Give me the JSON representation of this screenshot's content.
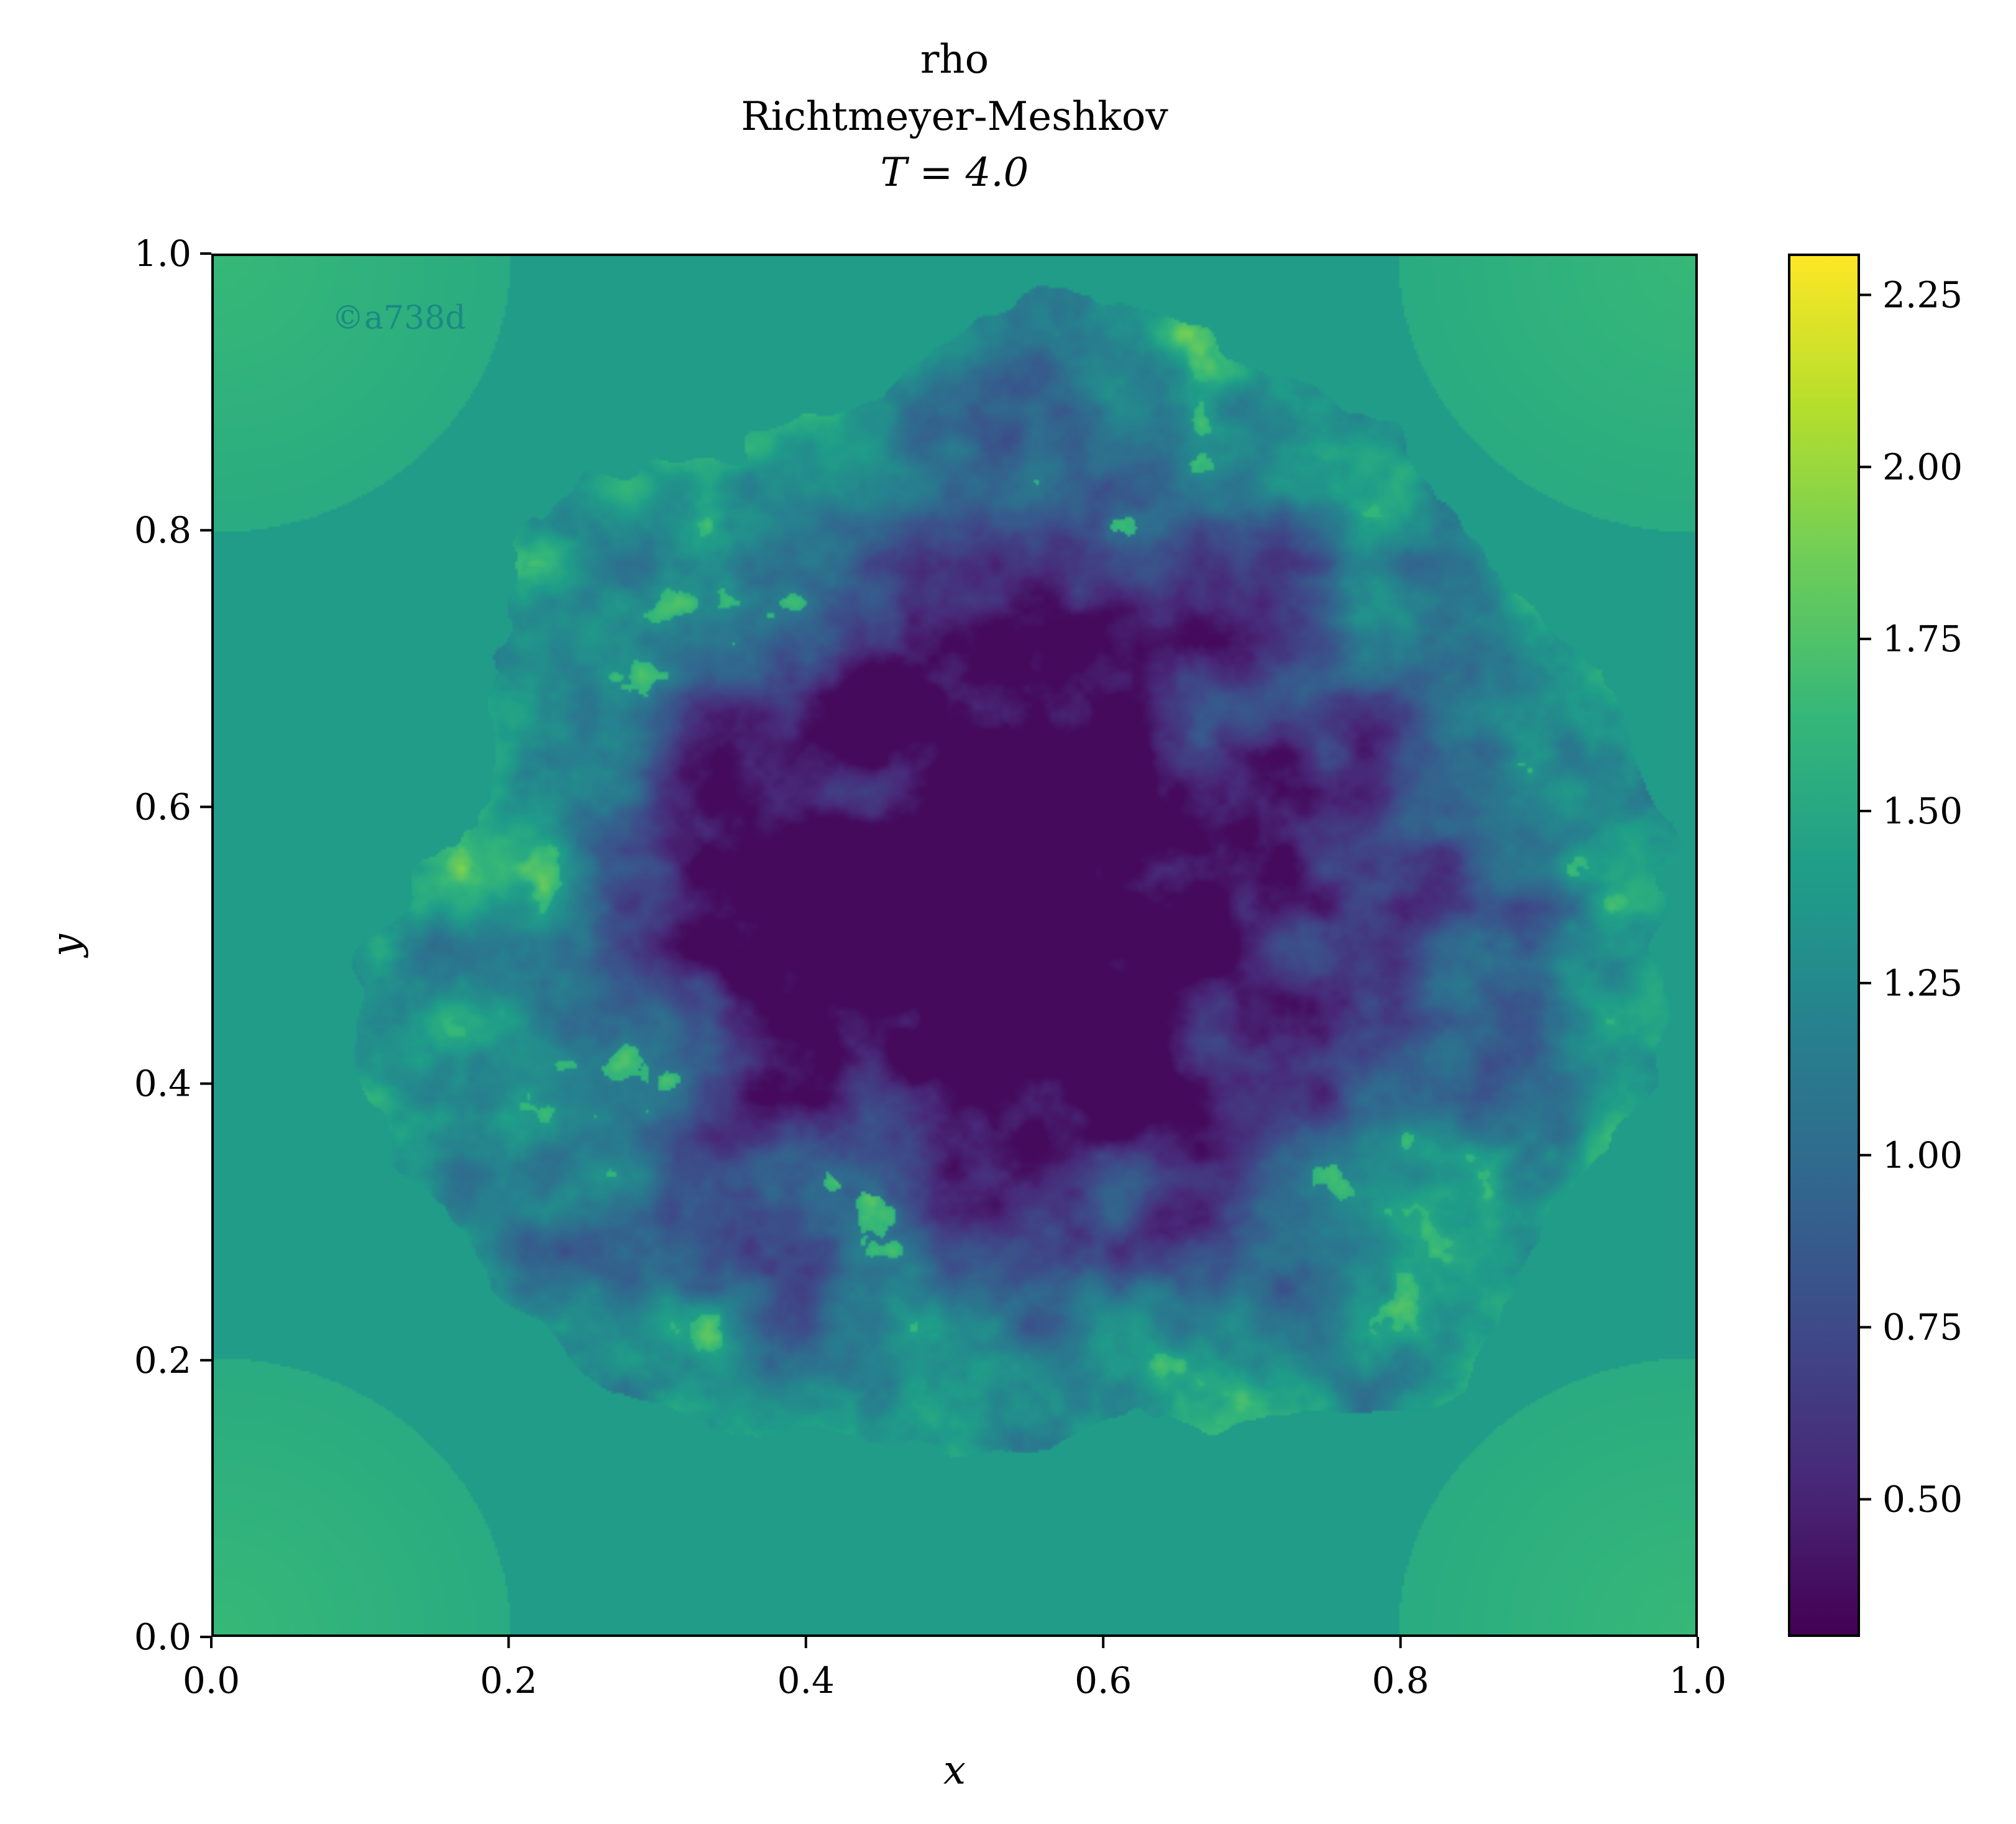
{
  "chart_data": {
    "type": "heatmap",
    "title_lines": [
      "rho",
      "Richtmeyer-Meshkov",
      "T = 4.0"
    ],
    "xlabel": "x",
    "ylabel": "y",
    "xlim": [
      0.0,
      1.0
    ],
    "ylim": [
      0.0,
      1.0
    ],
    "xticks": [
      0.0,
      0.2,
      0.4,
      0.6,
      0.8,
      1.0
    ],
    "yticks": [
      0.0,
      0.2,
      0.4,
      0.6,
      0.8,
      1.0
    ],
    "xtick_labels": [
      "0.0",
      "0.2",
      "0.4",
      "0.6",
      "0.8",
      "1.0"
    ],
    "ytick_labels": [
      "0.0",
      "0.2",
      "0.4",
      "0.6",
      "0.8",
      "1.0"
    ],
    "grid": false,
    "colormap": "viridis",
    "colorbar": {
      "range": [
        0.3,
        2.31
      ],
      "ticks": [
        0.5,
        0.75,
        1.0,
        1.25,
        1.5,
        1.75,
        2.0,
        2.25
      ],
      "tick_labels": [
        "0.50",
        "0.75",
        "1.00",
        "1.25",
        "1.50",
        "1.75",
        "2.00",
        "2.25"
      ]
    },
    "field": {
      "name": "rho",
      "background_value": 1.4,
      "mixing_region_value": 0.55,
      "mixing_region_extent": {
        "x": [
          0.1,
          0.95
        ],
        "y": [
          0.1,
          0.93
        ]
      },
      "corner_value": 1.65
    },
    "watermark": "©a738d"
  }
}
